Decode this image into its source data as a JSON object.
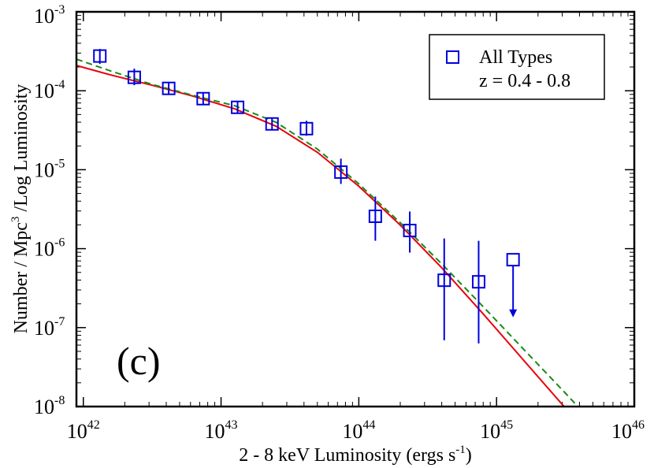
{
  "chart_data": {
    "type": "scatter",
    "panel_label": "(c)",
    "xaxis": {
      "label": "2 - 8 keV Luminosity  (ergs s",
      "label_sup": "-1",
      "label_end": ")",
      "scale": "log",
      "xlim_log10": [
        41.95,
        46
      ],
      "major_ticks": [
        {
          "base": "10",
          "exp": "42"
        },
        {
          "base": "10",
          "exp": "43"
        },
        {
          "base": "10",
          "exp": "44"
        },
        {
          "base": "10",
          "exp": "45"
        },
        {
          "base": "10",
          "exp": "46"
        }
      ]
    },
    "yaxis": {
      "label_pre": "Number / Mpc",
      "label_sup": "3",
      "label_post": " /Log Luminosity",
      "scale": "log",
      "ylim_log10": [
        -8,
        -3
      ],
      "major_ticks": [
        {
          "base": "10",
          "exp": "-3"
        },
        {
          "base": "10",
          "exp": "-4"
        },
        {
          "base": "10",
          "exp": "-5"
        },
        {
          "base": "10",
          "exp": "-6"
        },
        {
          "base": "10",
          "exp": "-7"
        },
        {
          "base": "10",
          "exp": "-8"
        }
      ]
    },
    "legend": {
      "location": "top-right",
      "entry": "All Types",
      "subtitle": "z = 0.4 - 0.8"
    },
    "series": [
      {
        "name": "All Types",
        "kind": "points",
        "marker": "open-square",
        "color": "#0000dd",
        "points": [
          {
            "logx": 42.12,
            "logy": -3.56,
            "logy_lo": -3.66,
            "logy_hi": -3.47
          },
          {
            "logx": 42.37,
            "logy": -3.83,
            "logy_lo": -3.93,
            "logy_hi": -3.72
          },
          {
            "logx": 42.62,
            "logy": -3.97,
            "logy_lo": -4.05,
            "logy_hi": -3.89
          },
          {
            "logx": 42.87,
            "logy": -4.1,
            "logy_lo": -4.17,
            "logy_hi": -4.03
          },
          {
            "logx": 43.12,
            "logy": -4.21,
            "logy_lo": -4.28,
            "logy_hi": -4.13
          },
          {
            "logx": 43.37,
            "logy": -4.42,
            "logy_lo": -4.5,
            "logy_hi": -4.34
          },
          {
            "logx": 43.62,
            "logy": -4.48,
            "logy_lo": -4.57,
            "logy_hi": -4.38
          },
          {
            "logx": 43.87,
            "logy": -5.03,
            "logy_lo": -5.18,
            "logy_hi": -4.86
          },
          {
            "logx": 44.12,
            "logy": -5.59,
            "logy_lo": -5.9,
            "logy_hi": -5.34
          },
          {
            "logx": 44.37,
            "logy": -5.77,
            "logy_lo": -6.05,
            "logy_hi": -5.53
          },
          {
            "logx": 44.62,
            "logy": -6.4,
            "logy_lo": -7.16,
            "logy_hi": -5.87
          },
          {
            "logx": 44.87,
            "logy": -6.42,
            "logy_lo": -7.2,
            "logy_hi": -5.9
          },
          {
            "logx": 45.12,
            "logy": -6.14,
            "upper_limit": true,
            "arrow_to_logy": -6.87
          }
        ]
      },
      {
        "name": "model (solid)",
        "kind": "line",
        "style": "solid",
        "color": "#e8000b",
        "points": [
          [
            41.95,
            -3.68
          ],
          [
            42.2,
            -3.8
          ],
          [
            42.5,
            -3.93
          ],
          [
            42.8,
            -4.07
          ],
          [
            43.1,
            -4.23
          ],
          [
            43.4,
            -4.45
          ],
          [
            43.7,
            -4.78
          ],
          [
            44.0,
            -5.21
          ],
          [
            44.3,
            -5.7
          ],
          [
            44.6,
            -6.24
          ],
          [
            44.9,
            -6.82
          ],
          [
            45.2,
            -7.42
          ],
          [
            45.5,
            -8.02
          ]
        ]
      },
      {
        "name": "model (dashed)",
        "kind": "line",
        "style": "dashed",
        "color": "#1a8a1a",
        "points": [
          [
            41.95,
            -3.6
          ],
          [
            42.2,
            -3.75
          ],
          [
            42.5,
            -3.92
          ],
          [
            42.8,
            -4.06
          ],
          [
            43.1,
            -4.19
          ],
          [
            43.4,
            -4.4
          ],
          [
            43.7,
            -4.74
          ],
          [
            44.0,
            -5.18
          ],
          [
            44.3,
            -5.67
          ],
          [
            44.6,
            -6.19
          ],
          [
            44.9,
            -6.73
          ],
          [
            45.2,
            -7.28
          ],
          [
            45.5,
            -7.83
          ],
          [
            45.6,
            -8.02
          ]
        ]
      }
    ]
  }
}
